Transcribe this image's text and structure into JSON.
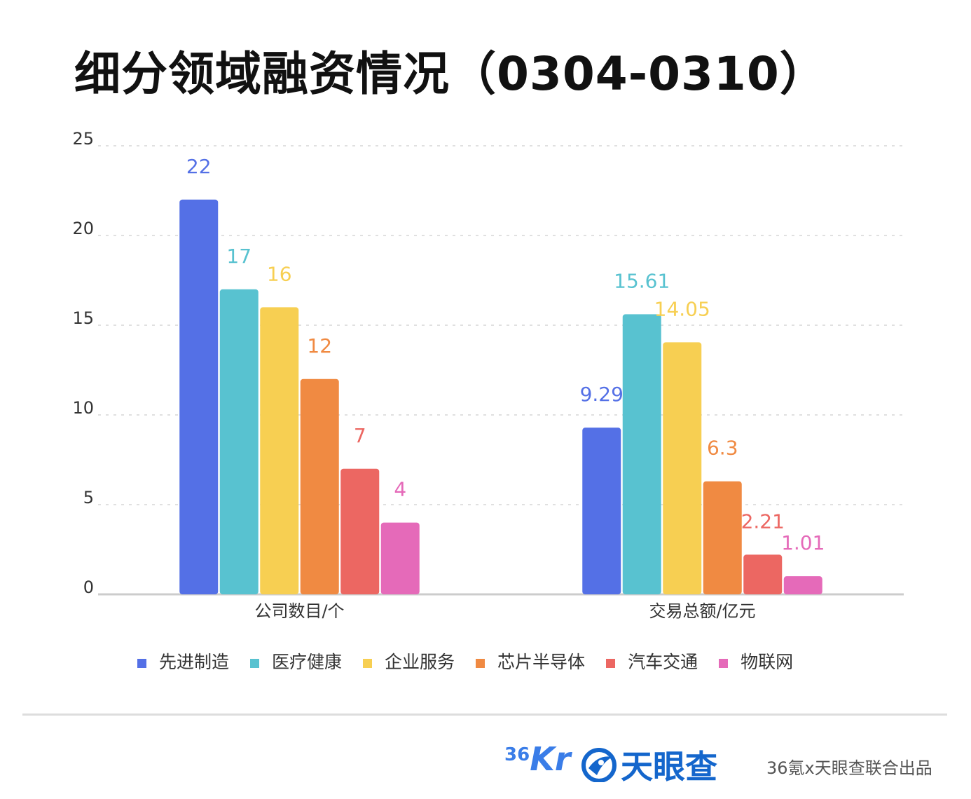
{
  "title": "细分领域融资情况（0304-0310）",
  "chart_data": {
    "type": "bar",
    "categories": [
      "公司数目/个",
      "交易总额/亿元"
    ],
    "series": [
      {
        "name": "先进制造",
        "color": "#5470e6",
        "values": [
          22,
          9.29
        ],
        "labels": [
          "22",
          "9.29"
        ]
      },
      {
        "name": "医疗健康",
        "color": "#58c2d0",
        "values": [
          17,
          15.61
        ],
        "labels": [
          "17",
          "15.61"
        ]
      },
      {
        "name": "企业服务",
        "color": "#f7cf52",
        "values": [
          16,
          14.05
        ],
        "labels": [
          "16",
          "14.05"
        ]
      },
      {
        "name": "芯片半导体",
        "color": "#f08a42",
        "values": [
          12,
          6.3
        ],
        "labels": [
          "12",
          "6.3"
        ]
      },
      {
        "name": "汽车交通",
        "color": "#ec6762",
        "values": [
          7,
          2.21
        ],
        "labels": [
          "7",
          "2.21"
        ]
      },
      {
        "name": "物联网",
        "color": "#e56ab9",
        "values": [
          4,
          1.01
        ],
        "labels": [
          "4",
          "1.01"
        ]
      }
    ],
    "yticks": [
      "0",
      "5",
      "10",
      "15",
      "20",
      "25"
    ],
    "ylim": [
      0,
      25
    ],
    "grid": true,
    "legend_position": "bottom"
  },
  "footer": {
    "logo_36kr_num": "36",
    "logo_36kr_kr": "Kr",
    "logo_tianyancha": "天眼查",
    "credit": "36氪x天眼查联合出品"
  }
}
